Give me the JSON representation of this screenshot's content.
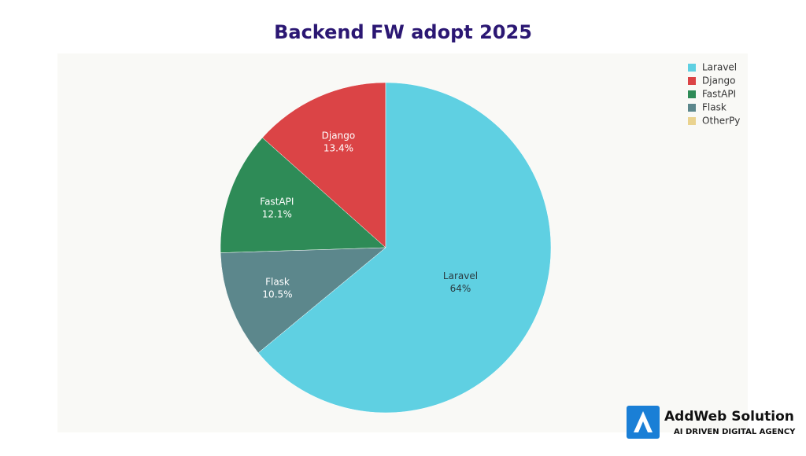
{
  "chart_data": {
    "type": "pie",
    "title": "Backend FW adopt 2025",
    "categories": [
      "Laravel",
      "Django",
      "FastAPI",
      "Flask",
      "OtherPy"
    ],
    "values": [
      64,
      13.4,
      12.1,
      10.5,
      0
    ],
    "value_labels": [
      "64%",
      "13.4%",
      "12.1%",
      "10.5%",
      null
    ],
    "colors": [
      "#5fd0e2",
      "#db4446",
      "#2e8b57",
      "#5c878c",
      "#ead38f"
    ],
    "legend": "top-right"
  },
  "logo": {
    "name": "AddWeb Solution",
    "tagline": "AI DRIVEN DIGITAL AGENCY"
  }
}
